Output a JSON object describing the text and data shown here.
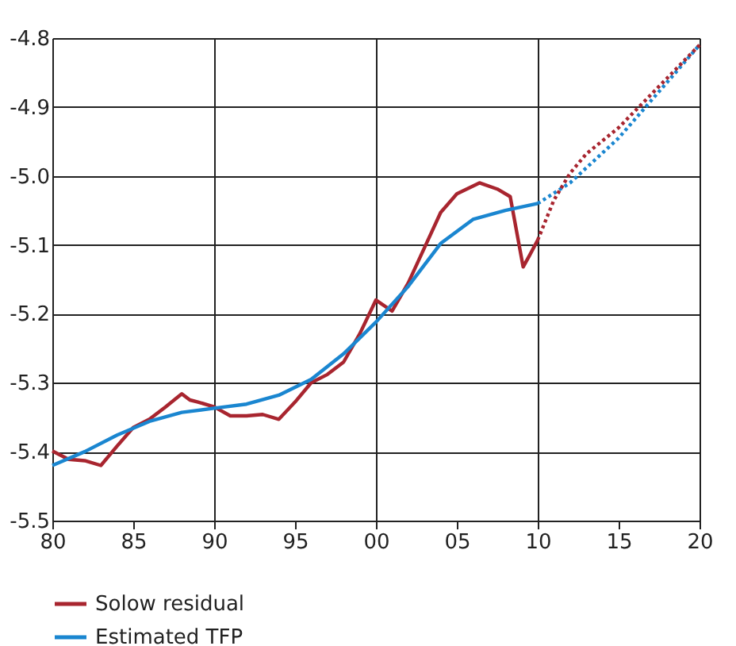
{
  "chart_data": {
    "type": "line",
    "xlim": [
      1980,
      2020
    ],
    "xticks": [
      {
        "value": 1980,
        "label": "80"
      },
      {
        "value": 1985,
        "label": "85"
      },
      {
        "value": 1990,
        "label": "90"
      },
      {
        "value": 1995,
        "label": "95"
      },
      {
        "value": 2000,
        "label": "00"
      },
      {
        "value": 2005,
        "label": "05"
      },
      {
        "value": 2010,
        "label": "10"
      },
      {
        "value": 2015,
        "label": "15"
      },
      {
        "value": 2020,
        "label": "20"
      }
    ],
    "ylim": [
      -5.5,
      -4.8
    ],
    "yticks": [
      {
        "value": -5.5,
        "label": "-5.5"
      },
      -5.4,
      -5.3,
      -5.2,
      -5.1,
      {
        "value": -5.0,
        "label": "-5.0"
      },
      -4.9,
      -4.8
    ],
    "grid": true,
    "legend": "bottom left",
    "series": [
      {
        "name": "Solow residual",
        "color": "#a8252f",
        "line_style": "solid",
        "x": [
          1980,
          1981,
          1982,
          1983,
          1984,
          1985,
          1986,
          1987,
          1988,
          1988.5,
          1989,
          1990,
          1991,
          1992,
          1993,
          1994,
          1995,
          1996,
          1997,
          1998,
          1999,
          2000,
          2001,
          2002,
          2003,
          2004,
          2005,
          2006.4,
          2007.5,
          2008.3,
          2009.1,
          2009.5,
          2010
        ],
        "values": [
          -5.399,
          -5.411,
          -5.413,
          -5.42,
          -5.392,
          -5.365,
          -5.353,
          -5.335,
          -5.316,
          -5.325,
          -5.328,
          -5.335,
          -5.348,
          -5.348,
          -5.346,
          -5.353,
          -5.328,
          -5.3,
          -5.288,
          -5.27,
          -5.229,
          -5.18,
          -5.196,
          -5.155,
          -5.104,
          -5.053,
          -5.026,
          -5.01,
          -5.019,
          -5.03,
          -5.132,
          -5.115,
          -5.093
        ]
      },
      {
        "name": "Estimated TFP",
        "color": "#1a86d0",
        "line_style": "solid",
        "x": [
          1980,
          1982,
          1984,
          1986,
          1988,
          1990,
          1992,
          1994,
          1996,
          1998,
          2000,
          2002,
          2004,
          2006,
          2008,
          2010
        ],
        "values": [
          -5.42,
          -5.4,
          -5.376,
          -5.356,
          -5.343,
          -5.337,
          -5.331,
          -5.318,
          -5.295,
          -5.258,
          -5.212,
          -5.16,
          -5.098,
          -5.063,
          -5.05,
          -5.04
        ]
      },
      {
        "color": "#1a86d0",
        "line_style": "dotted",
        "x": [
          2010,
          2012,
          2015,
          2020
        ],
        "values": [
          -5.04,
          -5.01,
          -4.945,
          -4.81
        ]
      },
      {
        "color": "#a8252f",
        "line_style": "dotted",
        "x": [
          2010,
          2011,
          2012,
          2013,
          2015,
          2020
        ],
        "values": [
          -5.093,
          -5.035,
          -4.996,
          -4.968,
          -4.93,
          -4.81
        ]
      }
    ]
  }
}
